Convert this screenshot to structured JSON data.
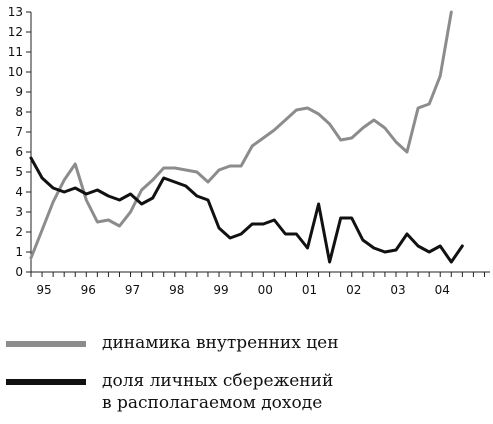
{
  "chart_data": {
    "type": "line",
    "ylim": [
      0,
      13
    ],
    "yticks": [
      "0",
      "1",
      "2",
      "3",
      "4",
      "5",
      "6",
      "7",
      "8",
      "9",
      "10",
      "11",
      "12",
      "13"
    ],
    "xlim": [
      0,
      41.5
    ],
    "xtick_positions": [
      1,
      5,
      9,
      13,
      17,
      21,
      25,
      29,
      33,
      37
    ],
    "xtick_labels": [
      "95",
      "96",
      "97",
      "98",
      "99",
      "00",
      "01",
      "02",
      "03",
      "04"
    ],
    "grid": false,
    "legend_position": "bottom",
    "series": [
      {
        "name": "динамика внутренних цен",
        "color": "#8c8c8c",
        "x": [
          0,
          1,
          2,
          3,
          4,
          5,
          6,
          7,
          8,
          9,
          10,
          11,
          12,
          13,
          14,
          15,
          16,
          17,
          18,
          19,
          20,
          21,
          22,
          23,
          24,
          25,
          26,
          27,
          28,
          29,
          30,
          31,
          32,
          33,
          34,
          35,
          36,
          37,
          38,
          39,
          40
        ],
        "y": [
          0.7,
          2.1,
          3.5,
          4.6,
          5.4,
          3.6,
          2.5,
          2.6,
          2.3,
          3.0,
          4.1,
          4.6,
          5.2,
          5.2,
          5.1,
          5.0,
          4.5,
          5.1,
          5.3,
          5.3,
          6.3,
          6.7,
          7.1,
          7.6,
          8.1,
          8.2,
          7.9,
          7.4,
          6.6,
          6.7,
          7.2,
          7.6,
          7.2,
          6.5,
          6.0,
          8.2,
          8.4,
          9.8,
          13.0,
          null,
          null
        ]
      },
      {
        "name": "доля личных сбережений в располагаемом доходе",
        "color": "#111111",
        "x": [
          0,
          1,
          2,
          3,
          4,
          5,
          6,
          7,
          8,
          9,
          10,
          11,
          12,
          13,
          14,
          15,
          16,
          17,
          18,
          19,
          20,
          21,
          22,
          23,
          24,
          25,
          26,
          27,
          28,
          29,
          30,
          31,
          32,
          33,
          34,
          35,
          36,
          37,
          38,
          39,
          40
        ],
        "y": [
          5.7,
          4.7,
          4.2,
          4.0,
          4.2,
          3.9,
          4.1,
          3.8,
          3.6,
          3.9,
          3.4,
          3.7,
          4.7,
          4.5,
          4.3,
          3.8,
          3.6,
          2.2,
          1.7,
          1.9,
          2.4,
          2.4,
          2.6,
          1.9,
          1.9,
          1.2,
          3.4,
          0.5,
          2.7,
          2.7,
          1.6,
          1.2,
          1.0,
          1.1,
          1.9,
          1.3,
          1.0,
          1.3,
          0.5,
          1.3,
          null
        ]
      }
    ]
  },
  "legend": {
    "items": [
      {
        "label": "динамика внутренних цен",
        "color": "#8c8c8c"
      },
      {
        "label_line1": "доля личных сбережений",
        "label_line2": "в располагаемом доходе",
        "color": "#111111"
      }
    ]
  }
}
